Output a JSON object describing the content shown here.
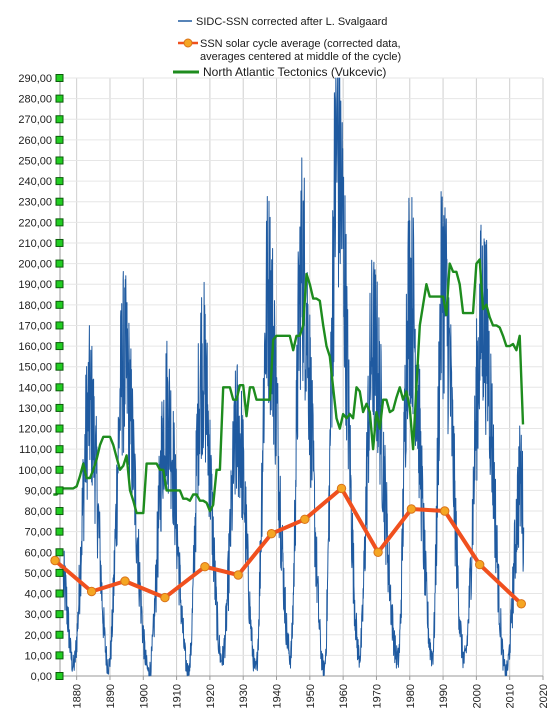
{
  "chart_data": {
    "type": "line",
    "title": "",
    "xlabel": "",
    "ylabel": "",
    "xlim": [
      1875,
      2020
    ],
    "ylim": [
      0,
      290
    ],
    "grid": true,
    "legend_position": "top",
    "x_ticks": [
      "1880",
      "1890",
      "1900",
      "1910",
      "1920",
      "1930",
      "1940",
      "1950",
      "1960",
      "1970",
      "1980",
      "1990",
      "2000",
      "2010",
      "2020"
    ],
    "y_ticks": [
      "0,00",
      "10,00",
      "20,00",
      "30,00",
      "40,00",
      "50,00",
      "60,00",
      "70,00",
      "80,00",
      "90,00",
      "100,00",
      "110,00",
      "120,00",
      "130,00",
      "140,00",
      "150,00",
      "160,00",
      "170,00",
      "180,00",
      "190,00",
      "200,00",
      "210,00",
      "220,00",
      "230,00",
      "240,00",
      "250,00",
      "260,00",
      "270,00",
      "280,00",
      "290,00"
    ],
    "series": [
      {
        "name": "SIDC-SSN corrected after L. Svalgaard",
        "color": "#1f5aa0",
        "style": "noisy-monthly",
        "cycle_x": [
          1876.0,
          1879.0,
          1883.9,
          1889.6,
          1894.1,
          1901.7,
          1907.0,
          1913.6,
          1917.6,
          1923.6,
          1928.4,
          1933.8,
          1937.4,
          1944.2,
          1947.5,
          1954.3,
          1958.2,
          1964.9,
          1968.9,
          1976.5,
          1979.9,
          1986.8,
          1989.9,
          1996.4,
          2001.9,
          2008.9,
          2013.5,
          2014.2
        ],
        "cycle_y": [
          45,
          5,
          130,
          5,
          152,
          2,
          129,
          2,
          152,
          8,
          120,
          3,
          185,
          10,
          200,
          3,
          254,
          10,
          160,
          8,
          188,
          10,
          192,
          8,
          175,
          2,
          96,
          72
        ]
      },
      {
        "name": "SSN solar cycle average  (corrected data, averages centered at middle of the cycle)",
        "color": "#f0501e",
        "x": [
          1873.5,
          1884.5,
          1894.5,
          1906.5,
          1918.5,
          1928.5,
          1938.5,
          1948.5,
          1959.5,
          1970.5,
          1980.5,
          1990.5,
          2001.0,
          2013.5
        ],
        "y": [
          56,
          41,
          46,
          38,
          53,
          49,
          69,
          76,
          91,
          60,
          81,
          80,
          54,
          35
        ]
      },
      {
        "name": "North Atlantic Tectonics (Vukcevic)",
        "color": "#1e8c1e",
        "x": [
          1873,
          1874,
          1876,
          1877,
          1878,
          1879,
          1880,
          1881,
          1882,
          1883,
          1884,
          1885,
          1886,
          1887,
          1888,
          1889,
          1890,
          1891,
          1892,
          1893,
          1894,
          1895,
          1896,
          1897,
          1898,
          1899,
          1900,
          1901,
          1902,
          1903,
          1904,
          1905,
          1906,
          1907,
          1908,
          1909,
          1910,
          1911,
          1912,
          1913,
          1914,
          1915,
          1916,
          1917,
          1918,
          1919,
          1920,
          1921,
          1922,
          1923,
          1924,
          1925,
          1926,
          1927,
          1928,
          1929,
          1930,
          1931,
          1932,
          1933,
          1934,
          1935,
          1936,
          1937,
          1938,
          1939,
          1940,
          1941,
          1942,
          1943,
          1944,
          1945,
          1946,
          1947,
          1948,
          1949,
          1950,
          1951,
          1952,
          1953,
          1954,
          1955,
          1956,
          1957,
          1958,
          1959,
          1960,
          1961,
          1962,
          1963,
          1964,
          1965,
          1966,
          1967,
          1968,
          1969,
          1970,
          1971,
          1972,
          1973,
          1974,
          1975,
          1976,
          1977,
          1978,
          1979,
          1980,
          1981,
          1982,
          1983,
          1984,
          1985,
          1986,
          1987,
          1988,
          1989,
          1990,
          1991,
          1992,
          1993,
          1994,
          1995,
          1996,
          1997,
          1998,
          1999,
          2000,
          2001,
          2002,
          2003,
          2004,
          2005,
          2006,
          2007,
          2008,
          2009,
          2010,
          2011,
          2012,
          2013,
          2014
        ],
        "y": [
          88,
          88,
          91,
          91,
          91,
          91,
          92,
          97,
          103,
          96,
          96,
          100,
          105,
          112,
          116,
          116,
          116,
          112,
          106,
          100,
          102,
          107,
          90,
          85,
          79,
          79,
          79,
          103,
          103,
          103,
          103,
          100,
          100,
          90,
          90,
          90,
          90,
          90,
          86,
          86,
          85,
          88,
          88,
          85,
          85,
          84,
          80,
          83,
          100,
          100,
          140,
          140,
          140,
          134,
          134,
          141,
          141,
          126,
          140,
          140,
          134,
          134,
          134,
          134,
          134,
          163,
          165,
          165,
          165,
          165,
          165,
          158,
          165,
          165,
          170,
          195,
          190,
          183,
          183,
          182,
          170,
          160,
          155,
          140,
          125,
          120,
          127,
          125,
          127,
          125,
          140,
          138,
          128,
          132,
          128,
          110,
          128,
          120,
          134,
          134,
          128,
          129,
          135,
          140,
          134,
          138,
          130,
          110,
          140,
          170,
          180,
          190,
          184,
          184,
          184,
          184,
          184,
          175,
          200,
          196,
          196,
          190,
          176,
          176,
          176,
          176,
          200,
          202,
          178,
          180,
          174,
          170,
          170,
          169,
          165,
          160,
          160,
          161,
          158,
          165,
          122
        ]
      }
    ]
  },
  "legend": {
    "line1": "SIDC-SSN corrected after L. Svalgaard",
    "line2a": "SSN solar cycle average  (corrected data,",
    "line2b": "averages centered at middle of the cycle)",
    "line3": "North Atlantic Tectonics (Vukcevic)"
  },
  "colors": {
    "ssn": "#1f5aa0",
    "avg": "#f0501e",
    "avg_marker": "#f5a623",
    "tectonics": "#1e8c1e",
    "tick_marker": "#22cc22",
    "grid": "#cfcfcf"
  }
}
